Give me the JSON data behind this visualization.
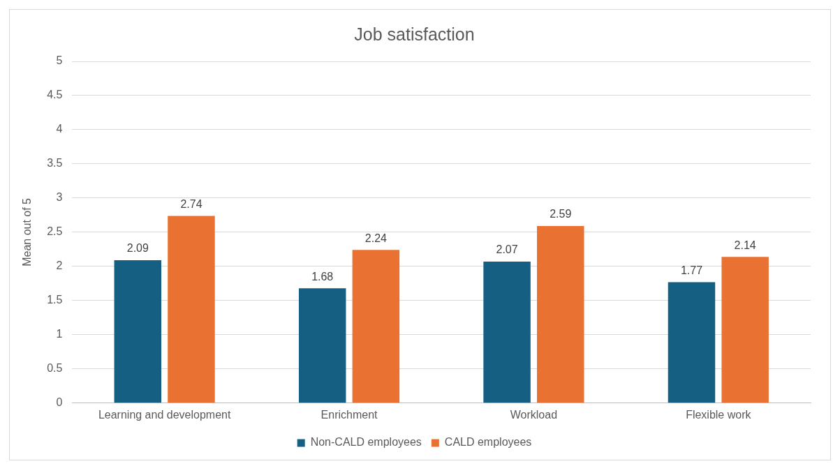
{
  "chart_data": {
    "type": "bar",
    "title": "Job satisfaction",
    "ylabel": "Mean out of 5",
    "categories": [
      "Learning and development",
      "Enrichment",
      "Workload",
      "Flexible work"
    ],
    "series": [
      {
        "name": "Non-CALD employees",
        "color": "#155f82",
        "values": [
          2.09,
          1.68,
          2.07,
          1.77
        ]
      },
      {
        "name": "CALD employees",
        "color": "#e97132",
        "values": [
          2.74,
          2.24,
          2.59,
          2.14
        ]
      }
    ],
    "ylim": [
      0,
      5
    ],
    "yticks": [
      0,
      0.5,
      1,
      1.5,
      2,
      2.5,
      3,
      3.5,
      4,
      4.5,
      5
    ],
    "grid": "y",
    "legend": "bottom",
    "data_labels": true
  }
}
